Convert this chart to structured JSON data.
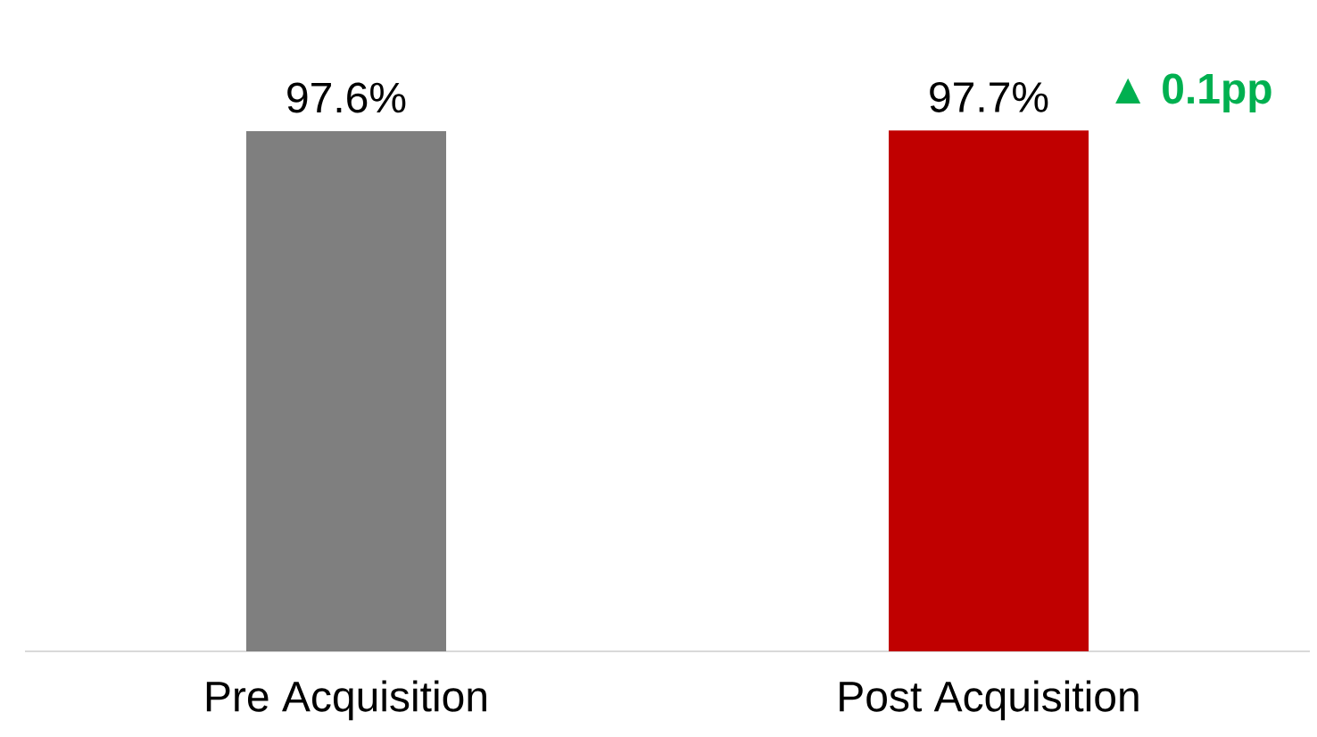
{
  "chart_data": {
    "type": "bar",
    "categories": [
      "Pre Acquisition",
      "Post Acquisition"
    ],
    "values": [
      97.6,
      97.7
    ],
    "colors": [
      "#7f7f7f",
      "#c00000"
    ],
    "value_labels": [
      "97.6%",
      "97.7%"
    ],
    "annotations": [
      "▲ 0.1pp"
    ]
  }
}
